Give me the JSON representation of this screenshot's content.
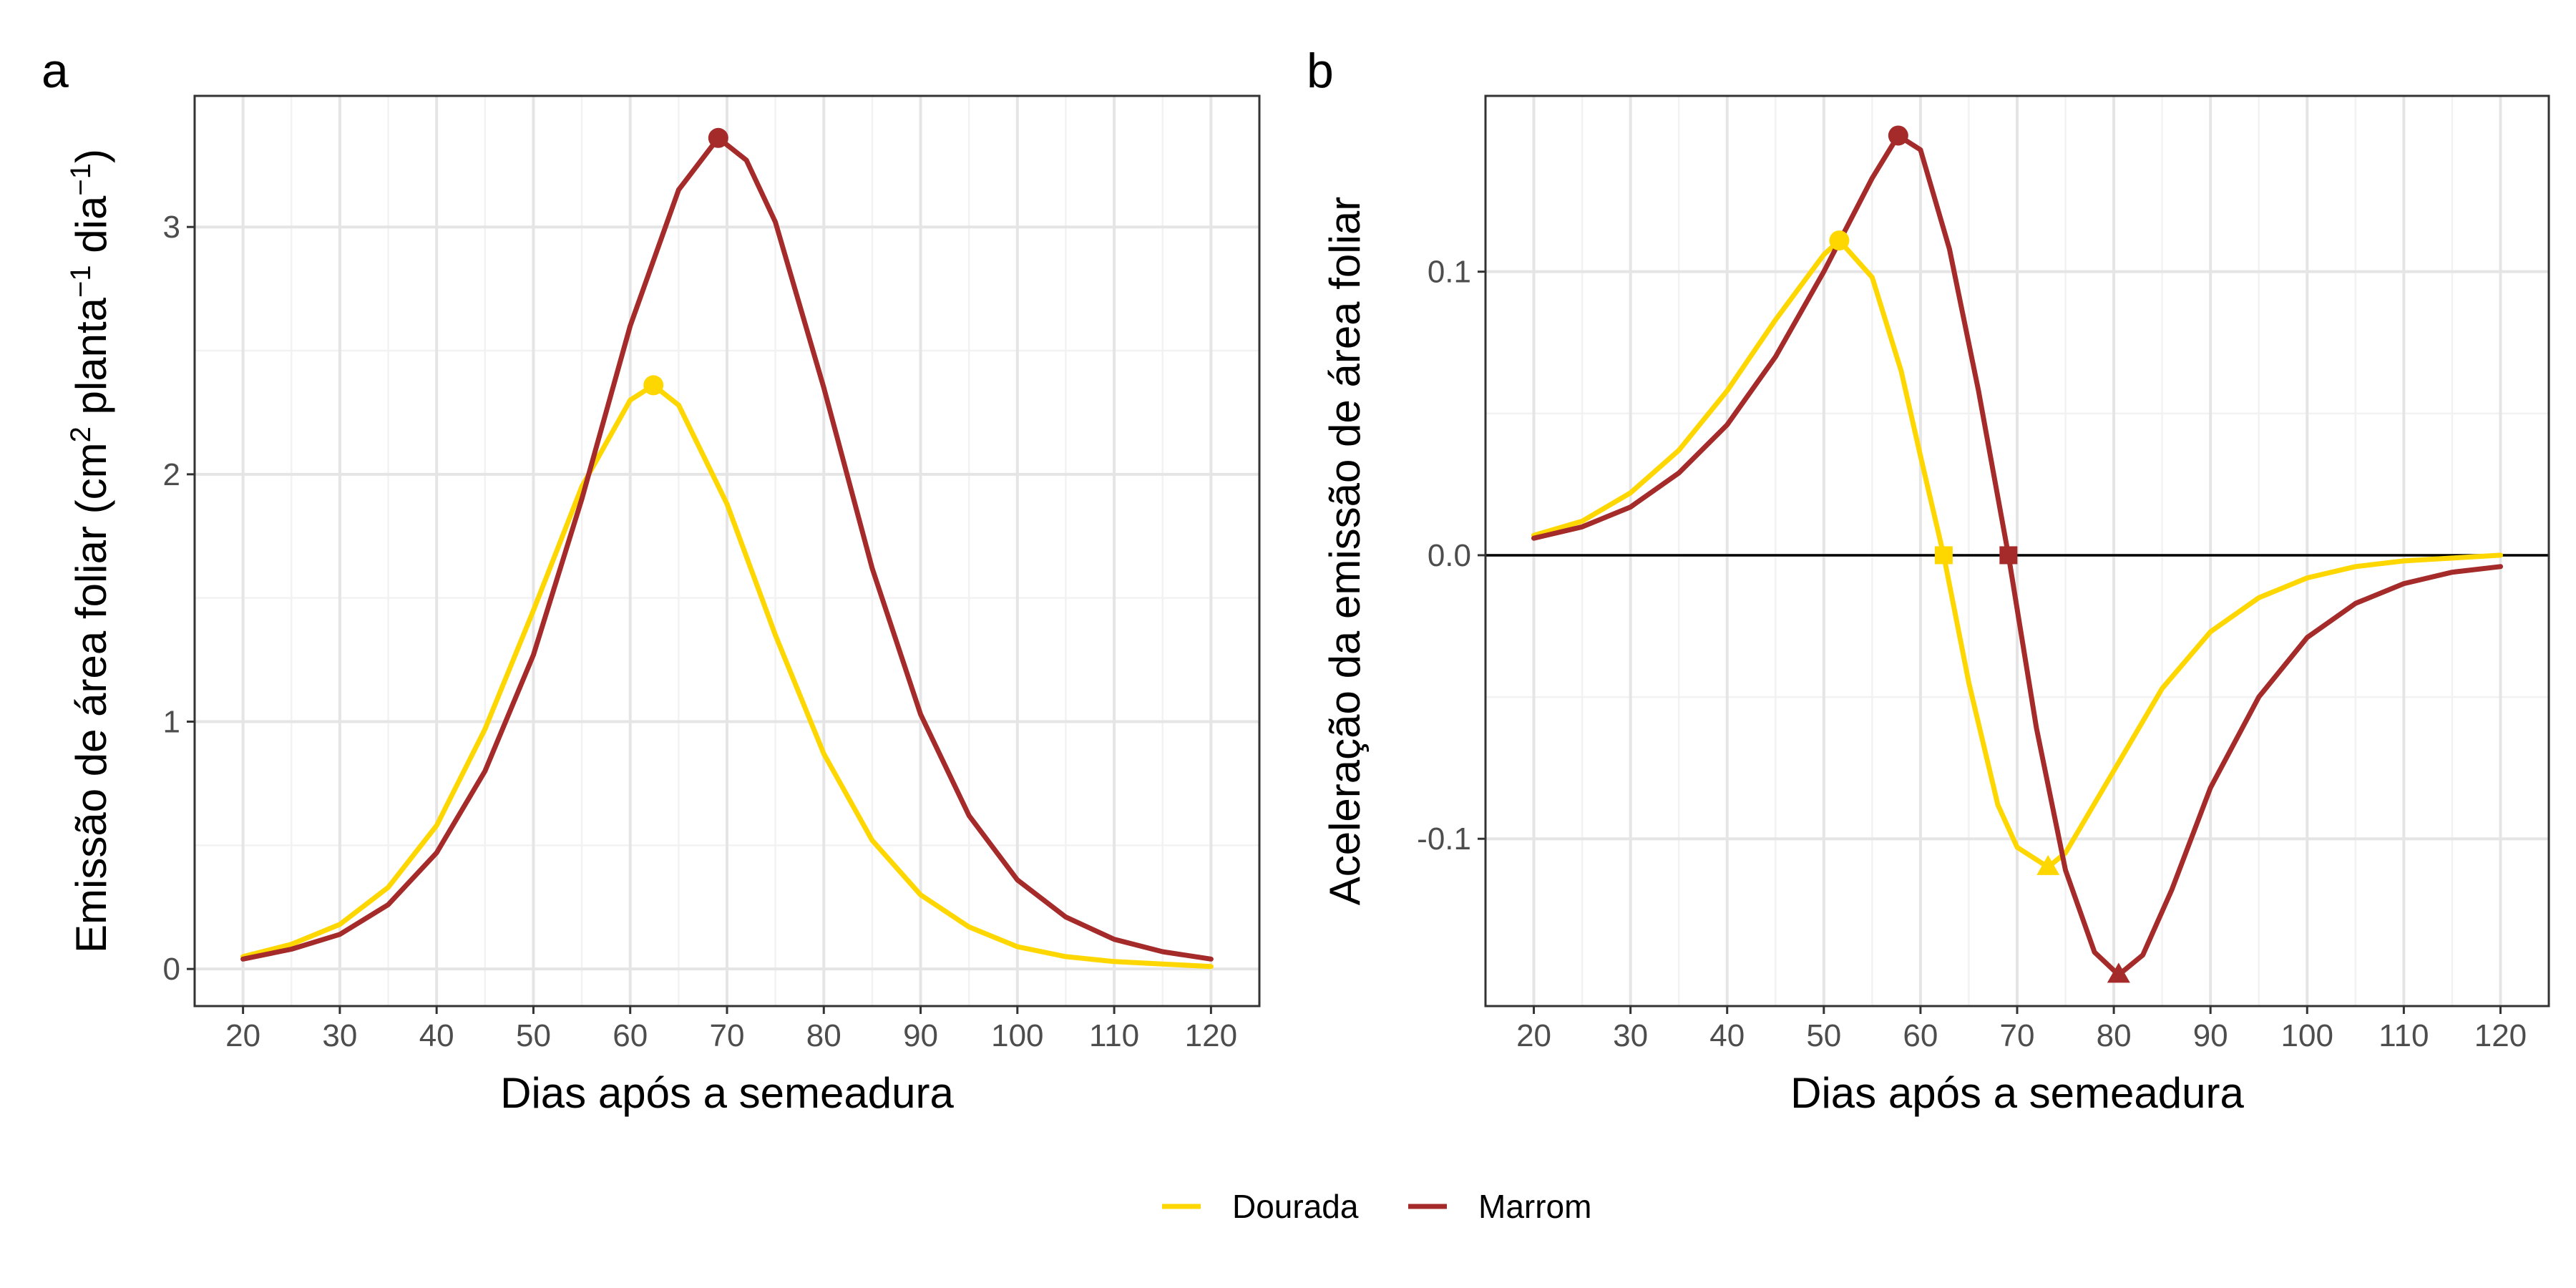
{
  "chart_data": [
    {
      "panel": "a",
      "type": "line",
      "xlabel": "Dias após a semeadura",
      "ylabel": {
        "base": "Emissão de área foliar (cm",
        "sup1": "2",
        "mid": " planta",
        "sup2": "−1",
        "mid2": " dia",
        "sup3": "−1",
        "end": ")"
      },
      "xlim": [
        15,
        125
      ],
      "ylim": [
        -0.15,
        3.53
      ],
      "xticks": [
        20,
        30,
        40,
        50,
        60,
        70,
        80,
        90,
        100,
        110,
        120
      ],
      "yticks": [
        0,
        1,
        2,
        3
      ],
      "ytick_labels": [
        "0",
        "1",
        "2",
        "3"
      ],
      "grid": true,
      "series": [
        {
          "name": "Dourada",
          "color": "#FFD700",
          "x": [
            20,
            25,
            30,
            35,
            40,
            45,
            50,
            55,
            60,
            62.4,
            65,
            70,
            75,
            80,
            85,
            90,
            95,
            100,
            105,
            110,
            115,
            120
          ],
          "values": [
            0.05,
            0.1,
            0.18,
            0.33,
            0.58,
            0.97,
            1.45,
            1.95,
            2.3,
            2.36,
            2.28,
            1.88,
            1.35,
            0.87,
            0.52,
            0.3,
            0.17,
            0.09,
            0.05,
            0.03,
            0.02,
            0.01
          ],
          "markers": [
            {
              "x": 62.4,
              "y": 2.36,
              "shape": "circle"
            }
          ]
        },
        {
          "name": "Marrom",
          "color": "#A52A2A",
          "x": [
            20,
            25,
            30,
            35,
            40,
            45,
            50,
            55,
            60,
            65,
            69.1,
            72,
            75,
            80,
            85,
            90,
            95,
            100,
            105,
            110,
            115,
            120
          ],
          "values": [
            0.04,
            0.08,
            0.14,
            0.26,
            0.47,
            0.8,
            1.27,
            1.9,
            2.6,
            3.15,
            3.36,
            3.27,
            3.02,
            2.35,
            1.62,
            1.03,
            0.62,
            0.36,
            0.21,
            0.12,
            0.07,
            0.04
          ],
          "markers": [
            {
              "x": 69.1,
              "y": 3.36,
              "shape": "circle"
            }
          ]
        }
      ]
    },
    {
      "panel": "b",
      "type": "line",
      "xlabel": "Dias após a semeadura",
      "ylabel": "Aceleração da emissão de área foliar",
      "xlim": [
        15,
        125
      ],
      "ylim": [
        -0.159,
        0.162
      ],
      "xticks": [
        20,
        30,
        40,
        50,
        60,
        70,
        80,
        90,
        100,
        110,
        120
      ],
      "yticks": [
        -0.1,
        0.0,
        0.1
      ],
      "ytick_labels": [
        "-0.1",
        "0.0",
        "0.1"
      ],
      "grid": true,
      "hline": 0,
      "series": [
        {
          "name": "Dourada",
          "color": "#FFD700",
          "x": [
            20,
            25,
            30,
            35,
            40,
            45,
            50,
            51.6,
            55,
            58,
            60,
            62.4,
            65,
            68,
            70,
            73.2,
            75,
            80,
            85,
            90,
            95,
            100,
            105,
            110,
            115,
            120
          ],
          "values": [
            0.007,
            0.012,
            0.022,
            0.037,
            0.058,
            0.083,
            0.106,
            0.111,
            0.098,
            0.065,
            0.035,
            0.0,
            -0.045,
            -0.088,
            -0.103,
            -0.11,
            -0.105,
            -0.076,
            -0.047,
            -0.027,
            -0.015,
            -0.008,
            -0.004,
            -0.002,
            -0.001,
            0.0
          ],
          "markers": [
            {
              "x": 51.6,
              "y": 0.111,
              "shape": "circle"
            },
            {
              "x": 62.4,
              "y": 0.0,
              "shape": "square"
            },
            {
              "x": 73.2,
              "y": -0.11,
              "shape": "triangle"
            }
          ]
        },
        {
          "name": "Marrom",
          "color": "#A52A2A",
          "x": [
            20,
            25,
            30,
            35,
            40,
            45,
            50,
            55,
            57.7,
            60,
            63,
            66,
            69.1,
            72,
            75,
            78,
            80.5,
            83,
            86,
            90,
            95,
            100,
            105,
            110,
            115,
            120
          ],
          "values": [
            0.006,
            0.01,
            0.017,
            0.029,
            0.046,
            0.07,
            0.1,
            0.133,
            0.148,
            0.143,
            0.108,
            0.058,
            0.0,
            -0.061,
            -0.111,
            -0.14,
            -0.148,
            -0.141,
            -0.118,
            -0.082,
            -0.05,
            -0.029,
            -0.017,
            -0.01,
            -0.006,
            -0.004
          ],
          "markers": [
            {
              "x": 57.7,
              "y": 0.148,
              "shape": "circle"
            },
            {
              "x": 69.1,
              "y": 0.0,
              "shape": "square"
            },
            {
              "x": 80.5,
              "y": -0.148,
              "shape": "triangle"
            }
          ]
        }
      ]
    }
  ],
  "legend": {
    "position": "bottom",
    "items": [
      {
        "label": "Dourada",
        "color": "#FFD700"
      },
      {
        "label": "Marrom",
        "color": "#A52A2A"
      }
    ]
  }
}
